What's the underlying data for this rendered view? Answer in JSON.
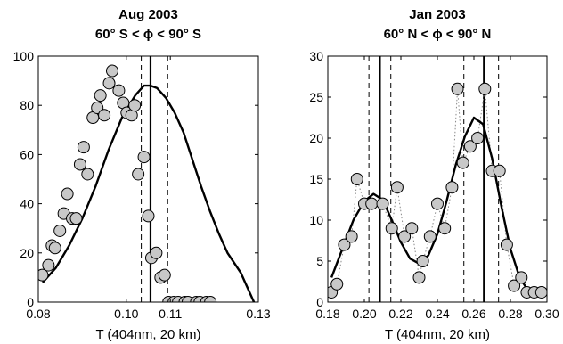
{
  "chart_data": [
    {
      "type": "scatter",
      "title": [
        "Aug 2003",
        "60° S < ϕ < 90° S"
      ],
      "xlabel": "T (404nm, 20 km)",
      "ylabel": "",
      "xlim": [
        0.08,
        0.13
      ],
      "ylim": [
        0,
        100
      ],
      "xticks": [
        0.08,
        0.1,
        0.11,
        0.13
      ],
      "xtick_labels": [
        "0.08",
        "0.10",
        "0.11",
        "0.13"
      ],
      "yticks": [
        0,
        20,
        40,
        60,
        80,
        100
      ],
      "ytick_labels": [
        "0",
        "20",
        "40",
        "60",
        "80",
        "100"
      ],
      "grid": false,
      "legend": "none",
      "series": [
        {
          "kind": "points",
          "x": [
            0.0809,
            0.0823,
            0.0831,
            0.0838,
            0.0849,
            0.0858,
            0.0866,
            0.0877,
            0.0886,
            0.0895,
            0.0903,
            0.0912,
            0.0924,
            0.0934,
            0.0941,
            0.095,
            0.0961,
            0.0968,
            0.0983,
            0.0993,
            0.1001,
            0.1012,
            0.1019,
            0.1027,
            0.104,
            0.105,
            0.1057,
            0.1068,
            0.1078,
            0.1087,
            0.1096,
            0.1108,
            0.1118,
            0.1133,
            0.114,
            0.1159,
            0.1167,
            0.1182,
            0.1191
          ],
          "y": [
            11,
            15,
            23,
            22,
            29,
            36,
            44,
            34,
            34,
            56,
            63,
            52,
            75,
            79,
            84,
            76,
            89,
            94,
            86,
            81,
            77,
            76,
            80,
            52,
            59,
            35,
            18,
            20,
            10,
            11,
            0,
            0,
            0,
            0,
            0,
            0,
            0,
            0,
            0
          ]
        },
        {
          "kind": "fit",
          "x": [
            0.081,
            0.084,
            0.087,
            0.09,
            0.093,
            0.096,
            0.099,
            0.102,
            0.104,
            0.1055,
            0.107,
            0.109,
            0.111,
            0.113,
            0.115,
            0.117,
            0.119,
            0.121,
            0.123,
            0.126,
            0.129
          ],
          "y": [
            8,
            14,
            23,
            34,
            47,
            62,
            75,
            84,
            88,
            88,
            87,
            83,
            77,
            69,
            58,
            47,
            37,
            28,
            20,
            12,
            0
          ]
        }
      ],
      "vlines_solid": [
        0.1055
      ],
      "vlines_dashed": [
        0.1034,
        0.1094
      ]
    },
    {
      "type": "scatter",
      "title": [
        "Jan 2003",
        "60° N < ϕ < 90° N"
      ],
      "xlabel": "T (404nm, 20 km)",
      "ylabel": "",
      "xlim": [
        0.18,
        0.3
      ],
      "ylim": [
        0,
        30
      ],
      "xticks": [
        0.18,
        0.2,
        0.22,
        0.24,
        0.26,
        0.28,
        0.3
      ],
      "xtick_labels": [
        "0.18",
        "0.20",
        "0.22",
        "0.24",
        "0.26",
        "0.28",
        "0.30"
      ],
      "yticks": [
        0,
        5,
        10,
        15,
        20,
        25,
        30
      ],
      "ytick_labels": [
        "0",
        "5",
        "10",
        "15",
        "20",
        "25",
        "30"
      ],
      "grid": false,
      "legend": "none",
      "series": [
        {
          "kind": "points",
          "x": [
            0.182,
            0.185,
            0.189,
            0.193,
            0.196,
            0.2,
            0.204,
            0.21,
            0.215,
            0.218,
            0.222,
            0.226,
            0.23,
            0.232,
            0.236,
            0.24,
            0.244,
            0.248,
            0.251,
            0.254,
            0.258,
            0.262,
            0.266,
            0.27,
            0.274,
            0.278,
            0.282,
            0.286,
            0.289,
            0.293,
            0.297
          ],
          "y": [
            1.2,
            2.2,
            7,
            8,
            15,
            12,
            12,
            12,
            9,
            14,
            8,
            9,
            3,
            5,
            8,
            12,
            9,
            14,
            26,
            17,
            19,
            20,
            26,
            16,
            16,
            7,
            2,
            3,
            1.2,
            1.2,
            1.2
          ]
        },
        {
          "kind": "fit",
          "x": [
            0.182,
            0.188,
            0.194,
            0.2,
            0.205,
            0.21,
            0.215,
            0.22,
            0.225,
            0.23,
            0.235,
            0.24,
            0.245,
            0.25,
            0.255,
            0.26,
            0.265,
            0.27,
            0.275,
            0.28,
            0.285,
            0.29,
            0.295,
            0.298
          ],
          "y": [
            3,
            6.5,
            10,
            12.3,
            13.2,
            12.5,
            10,
            7.3,
            5.3,
            4.7,
            5.7,
            8.3,
            12.3,
            16.7,
            20.2,
            22.5,
            21.7,
            17.5,
            11.7,
            6.5,
            3,
            1.3,
            0.7,
            0.6
          ]
        }
      ],
      "vlines_solid": [
        0.2085,
        0.2655
      ],
      "vlines_dashed": [
        0.2025,
        0.2145,
        0.2545,
        0.2735
      ]
    }
  ]
}
